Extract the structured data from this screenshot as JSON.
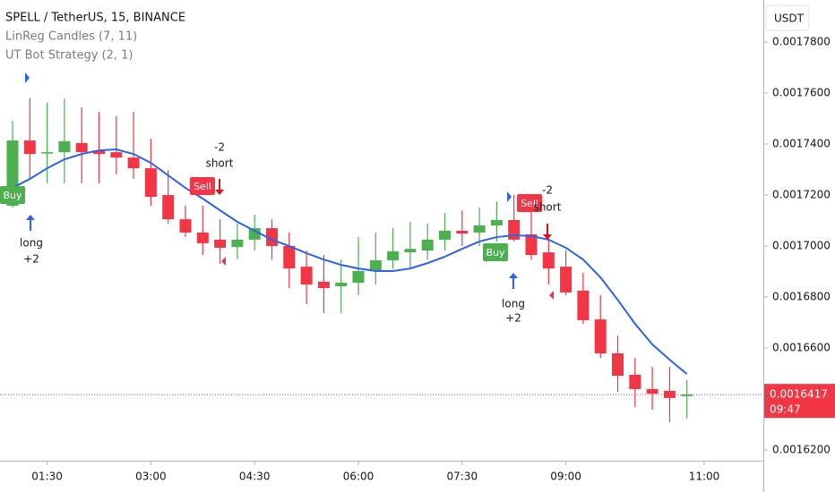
{
  "header": {
    "symbol": "SPELL / TetherUS, 15, BINANCE",
    "indicators": [
      "LinReg Candles (7, 11)",
      "UT Bot Strategy (2, 1)"
    ]
  },
  "chart_data": {
    "type": "candlestick",
    "currency": "USDT",
    "x": [
      "01:00",
      "01:15",
      "01:30",
      "01:45",
      "02:00",
      "02:15",
      "02:30",
      "02:45",
      "03:00",
      "03:15",
      "03:30",
      "03:45",
      "04:00",
      "04:15",
      "04:30",
      "04:45",
      "05:00",
      "05:15",
      "05:30",
      "05:45",
      "06:00",
      "06:15",
      "06:30",
      "06:45",
      "07:00",
      "07:15",
      "07:30",
      "07:45",
      "08:00",
      "08:15",
      "08:30",
      "08:45",
      "09:00",
      "09:15",
      "09:30",
      "09:45",
      "10:00",
      "10:15",
      "10:30",
      "10:45"
    ],
    "open": [
      0.0017158,
      0.0017414,
      0.0017365,
      0.0017368,
      0.0017404,
      0.0017375,
      0.0017368,
      0.0017347,
      0.0017305,
      0.00172,
      0.0017105,
      0.0017053,
      0.0017025,
      0.0016996,
      0.0017025,
      0.001707,
      0.0017,
      0.0016919,
      0.001686,
      0.0016842,
      0.0016856,
      0.0016902,
      0.0016944,
      0.0016975,
      0.0016982,
      0.0017025,
      0.001706,
      0.0017053,
      0.0017081,
      0.0017102,
      0.0017046,
      0.0016975,
      0.0016919,
      0.0016825,
      0.0016712,
      0.0016579,
      0.0016495,
      0.0016439,
      0.0016432,
      0.0016411
    ],
    "high": [
      0.0017491,
      0.0017579,
      0.0017561,
      0.0017579,
      0.0017544,
      0.0017526,
      0.0017509,
      0.0017526,
      0.0017421,
      0.0017298,
      0.0017158,
      0.0017158,
      0.0017105,
      0.0017088,
      0.0017123,
      0.0017105,
      0.0017053,
      0.0016982,
      0.0016965,
      0.0016947,
      0.0017035,
      0.0017053,
      0.001707,
      0.0017095,
      0.0017088,
      0.001713,
      0.001714,
      0.0017151,
      0.0017175,
      0.00172,
      0.001714,
      0.0017035,
      0.0016982,
      0.0016895,
      0.0016807,
      0.0016649,
      0.0016561,
      0.0016526,
      0.0016526,
      0.0016474
    ],
    "low": [
      0.0017151,
      0.0017263,
      0.0017246,
      0.0017246,
      0.0017246,
      0.0017246,
      0.0017281,
      0.0017263,
      0.0017158,
      0.0017088,
      0.0017035,
      0.0016965,
      0.001693,
      0.0016947,
      0.0016982,
      0.0016947,
      0.0016835,
      0.0016772,
      0.0016737,
      0.0016737,
      0.0016807,
      0.0016849,
      0.0016912,
      0.0016912,
      0.0016947,
      0.0016982,
      0.0017,
      0.0017,
      0.0017018,
      0.0017018,
      0.0016947,
      0.0016849,
      0.0016807,
      0.0016695,
      0.0016561,
      0.0016428,
      0.0016368,
      0.0016358,
      0.0016309,
      0.0016323
    ],
    "close": [
      0.0017414,
      0.0017361,
      0.0017368,
      0.0017411,
      0.0017368,
      0.0017361,
      0.0017347,
      0.0017305,
      0.0017193,
      0.0017105,
      0.0017053,
      0.0017011,
      0.0016993,
      0.0017025,
      0.001707,
      0.0017,
      0.0016912,
      0.0016849,
      0.0016835,
      0.0016856,
      0.0016902,
      0.0016944,
      0.0016979,
      0.0016989,
      0.0017025,
      0.001706,
      0.0017049,
      0.0017081,
      0.0017102,
      0.0017025,
      0.0016965,
      0.0016912,
      0.0016818,
      0.0016709,
      0.0016579,
      0.0016491,
      0.0016439,
      0.0016421,
      0.0016404,
      0.0016417
    ],
    "up_color": "#4caf50",
    "down_color": "#f23645",
    "line": {
      "color": "#2f62e6",
      "values": [
        0.0017228,
        0.0017263,
        0.0017305,
        0.001734,
        0.0017361,
        0.0017375,
        0.0017379,
        0.0017361,
        0.0017326,
        0.0017277,
        0.0017228,
        0.0017186,
        0.001714,
        0.0017095,
        0.001706,
        0.0017025,
        0.0017,
        0.0016972,
        0.0016947,
        0.0016926,
        0.0016912,
        0.0016902,
        0.0016902,
        0.0016912,
        0.0016933,
        0.0016958,
        0.0016989,
        0.0017018,
        0.0017035,
        0.0017042,
        0.0017039,
        0.0017025,
        0.0016993,
        0.0016947,
        0.0016877,
        0.0016789,
        0.0016695,
        0.0016614,
        0.0016554,
        0.0016498
      ]
    },
    "signals": [
      {
        "x": "01:00",
        "label": "Buy",
        "note": [
          "long",
          "+2"
        ]
      },
      {
        "x": "03:45",
        "label": "Sell",
        "note": [
          "-2",
          "short"
        ]
      },
      {
        "x": "08:00",
        "label": "Buy",
        "note": [
          "long",
          "+2"
        ]
      },
      {
        "x": "08:30",
        "label": "Sell",
        "note": [
          "-2",
          "short"
        ]
      }
    ],
    "ylim": [
      0.0016158,
      0.0017965
    ],
    "yticks": [
      {
        "value": 0.00162,
        "label": "0.0016200"
      },
      {
        "value": 0.00166,
        "label": "0.0016600"
      },
      {
        "value": 0.00168,
        "label": "0.0016800"
      },
      {
        "value": 0.0017,
        "label": "0.0017000"
      },
      {
        "value": 0.00172,
        "label": "0.0017200"
      },
      {
        "value": 0.00174,
        "label": "0.0017400"
      },
      {
        "value": 0.00176,
        "label": "0.0017600"
      },
      {
        "value": 0.00178,
        "label": "0.0017800"
      }
    ],
    "xticks": [
      "01:30",
      "03:00",
      "04:30",
      "06:00",
      "07:30",
      "09:00",
      "11:00"
    ],
    "last_price": 0.0016417,
    "countdown": "09:47"
  }
}
